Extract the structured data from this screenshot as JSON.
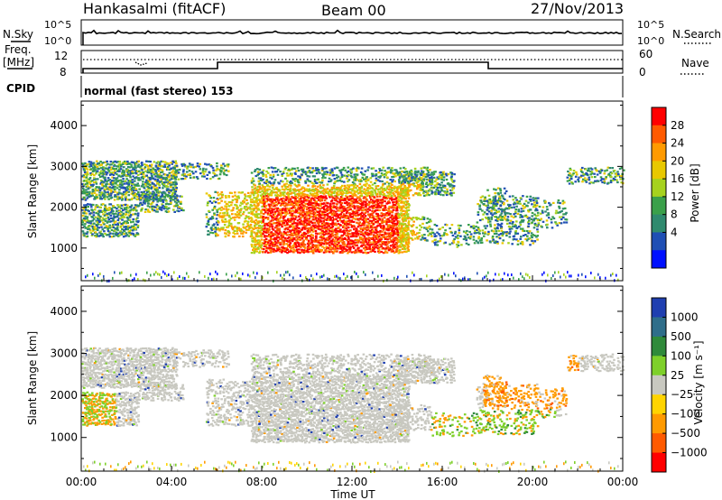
{
  "header": {
    "station": "Hankasalmi (fitACF)",
    "beam": "Beam 00",
    "date": "27/Nov/2013"
  },
  "noise_panel": {
    "left_label": "N.Sky",
    "right_label": "N.Search",
    "left_ticks": [
      "10^5",
      "10^0"
    ],
    "right_ticks": [
      "10^5",
      "10^0"
    ]
  },
  "freq_panel": {
    "left_label_line1": "Freq.",
    "left_label_line2": "[MHz]",
    "left_ticks": [
      "12",
      "8"
    ],
    "right_label": "Nave",
    "right_ticks": [
      "60",
      "0"
    ]
  },
  "cpid": {
    "label": "CPID",
    "text": "normal (fast stereo) 153"
  },
  "chart_data": [
    {
      "type": "heatmap",
      "name": "power",
      "ylabel": "Slant Range [km]",
      "xlabel": "",
      "ylim": [
        200,
        4600
      ],
      "yticks": [
        "4000",
        "3000",
        "2000",
        "1000"
      ],
      "colorbar": {
        "label": "Power [dB]",
        "ticks": [
          "28",
          "24",
          "20",
          "16",
          "12",
          "8",
          "4"
        ],
        "colors": [
          "#ff0000",
          "#ff5a00",
          "#ff9a00",
          "#e8c800",
          "#a6d21e",
          "#3aa04a",
          "#2f8a6e",
          "#1f4fb4",
          "#0010ff"
        ]
      }
    },
    {
      "type": "heatmap",
      "name": "velocity",
      "ylabel": "Slant Range [km]",
      "xlabel": "Time UT",
      "ylim": [
        200,
        4600
      ],
      "yticks": [
        "4000",
        "3000",
        "2000",
        "1000"
      ],
      "xticks": [
        "00:00",
        "04:00",
        "08:00",
        "12:00",
        "16:00",
        "20:00",
        "00:00"
      ],
      "colorbar": {
        "label": "Velocity [m s⁻¹]",
        "ticks": [
          "1000",
          "500",
          "100",
          "25",
          "−25",
          "−100",
          "−500",
          "−1000"
        ],
        "colors": [
          "#1f3fb0",
          "#2f6e8a",
          "#2f8a3a",
          "#7ed02a",
          "#c8c8c0",
          "#ffd400",
          "#ff9a00",
          "#ff5a00",
          "#ff0000"
        ]
      }
    }
  ]
}
